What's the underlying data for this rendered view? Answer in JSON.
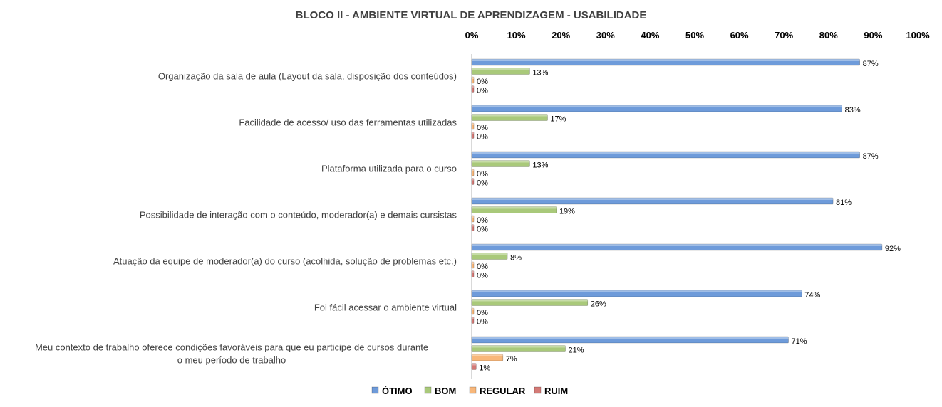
{
  "chart_data": {
    "type": "bar",
    "orientation": "horizontal",
    "title": "BLOCO II - AMBIENTE VIRTUAL DE APRENDIZAGEM - USABILIDADE",
    "x_axis_position": "top",
    "xlim": [
      0,
      100
    ],
    "ticks": [
      "0%",
      "10%",
      "20%",
      "30%",
      "40%",
      "50%",
      "60%",
      "70%",
      "80%",
      "90%",
      "100%"
    ],
    "categories": [
      [
        "Organização da sala de aula (Layout da sala, disposição dos conteúdos)"
      ],
      [
        "Facilidade de acesso/ uso das ferramentas utilizadas"
      ],
      [
        "Plataforma utilizada para o curso"
      ],
      [
        "Possibilidade de interação com o conteúdo, moderador(a) e demais cursistas"
      ],
      [
        "Atuação da equipe de moderador(a) do curso (acolhida, solução de problemas etc.)"
      ],
      [
        "Foi fácil acessar o ambiente virtual"
      ],
      [
        "Meu contexto de trabalho oferece condições favoráveis para que eu participe de cursos durante",
        "o meu período de trabalho"
      ]
    ],
    "series": [
      {
        "name": "ÓTIMO",
        "color": "#6E9BDA",
        "values": [
          87,
          83,
          87,
          81,
          92,
          74,
          71
        ]
      },
      {
        "name": "BOM",
        "color": "#A9C97A",
        "values": [
          13,
          17,
          13,
          19,
          8,
          26,
          21
        ]
      },
      {
        "name": "REGULAR",
        "color": "#F8B77A",
        "values": [
          0,
          0,
          0,
          0,
          0,
          0,
          7
        ]
      },
      {
        "name": "RUIM",
        "color": "#D47A76",
        "values": [
          0,
          0,
          0,
          0,
          0,
          0,
          1
        ]
      }
    ],
    "legend": "bottom",
    "grid": false,
    "data_labels": true
  }
}
